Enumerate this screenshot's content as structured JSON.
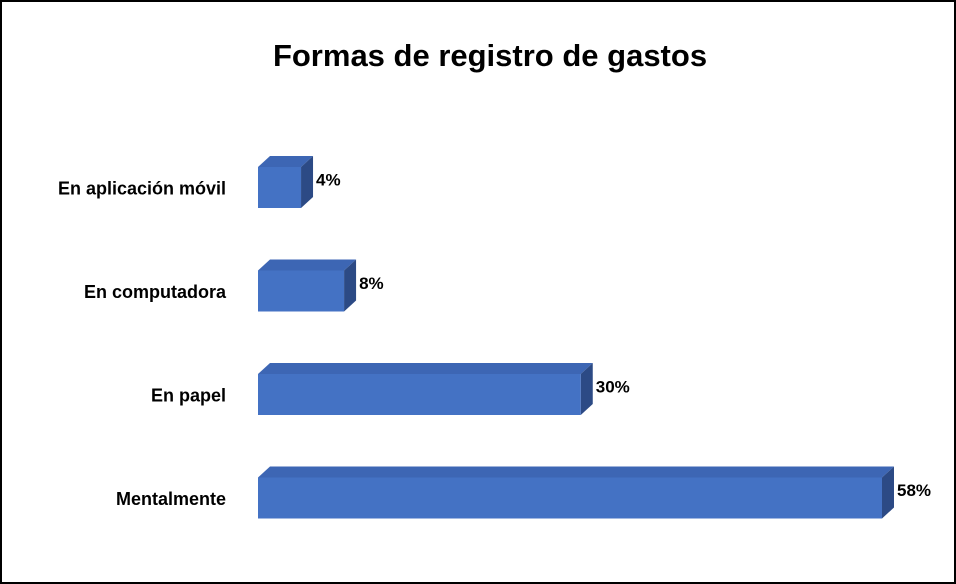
{
  "chart_data": {
    "type": "bar",
    "orientation": "horizontal",
    "title": "Formas de registro de gastos",
    "categories": [
      "En aplicación móvil",
      "En computadora",
      "En papel",
      "Mentalmente"
    ],
    "values": [
      4,
      8,
      30,
      58
    ],
    "value_labels": [
      "4%",
      "8%",
      "30%",
      "58%"
    ],
    "color": "#4472c4"
  }
}
